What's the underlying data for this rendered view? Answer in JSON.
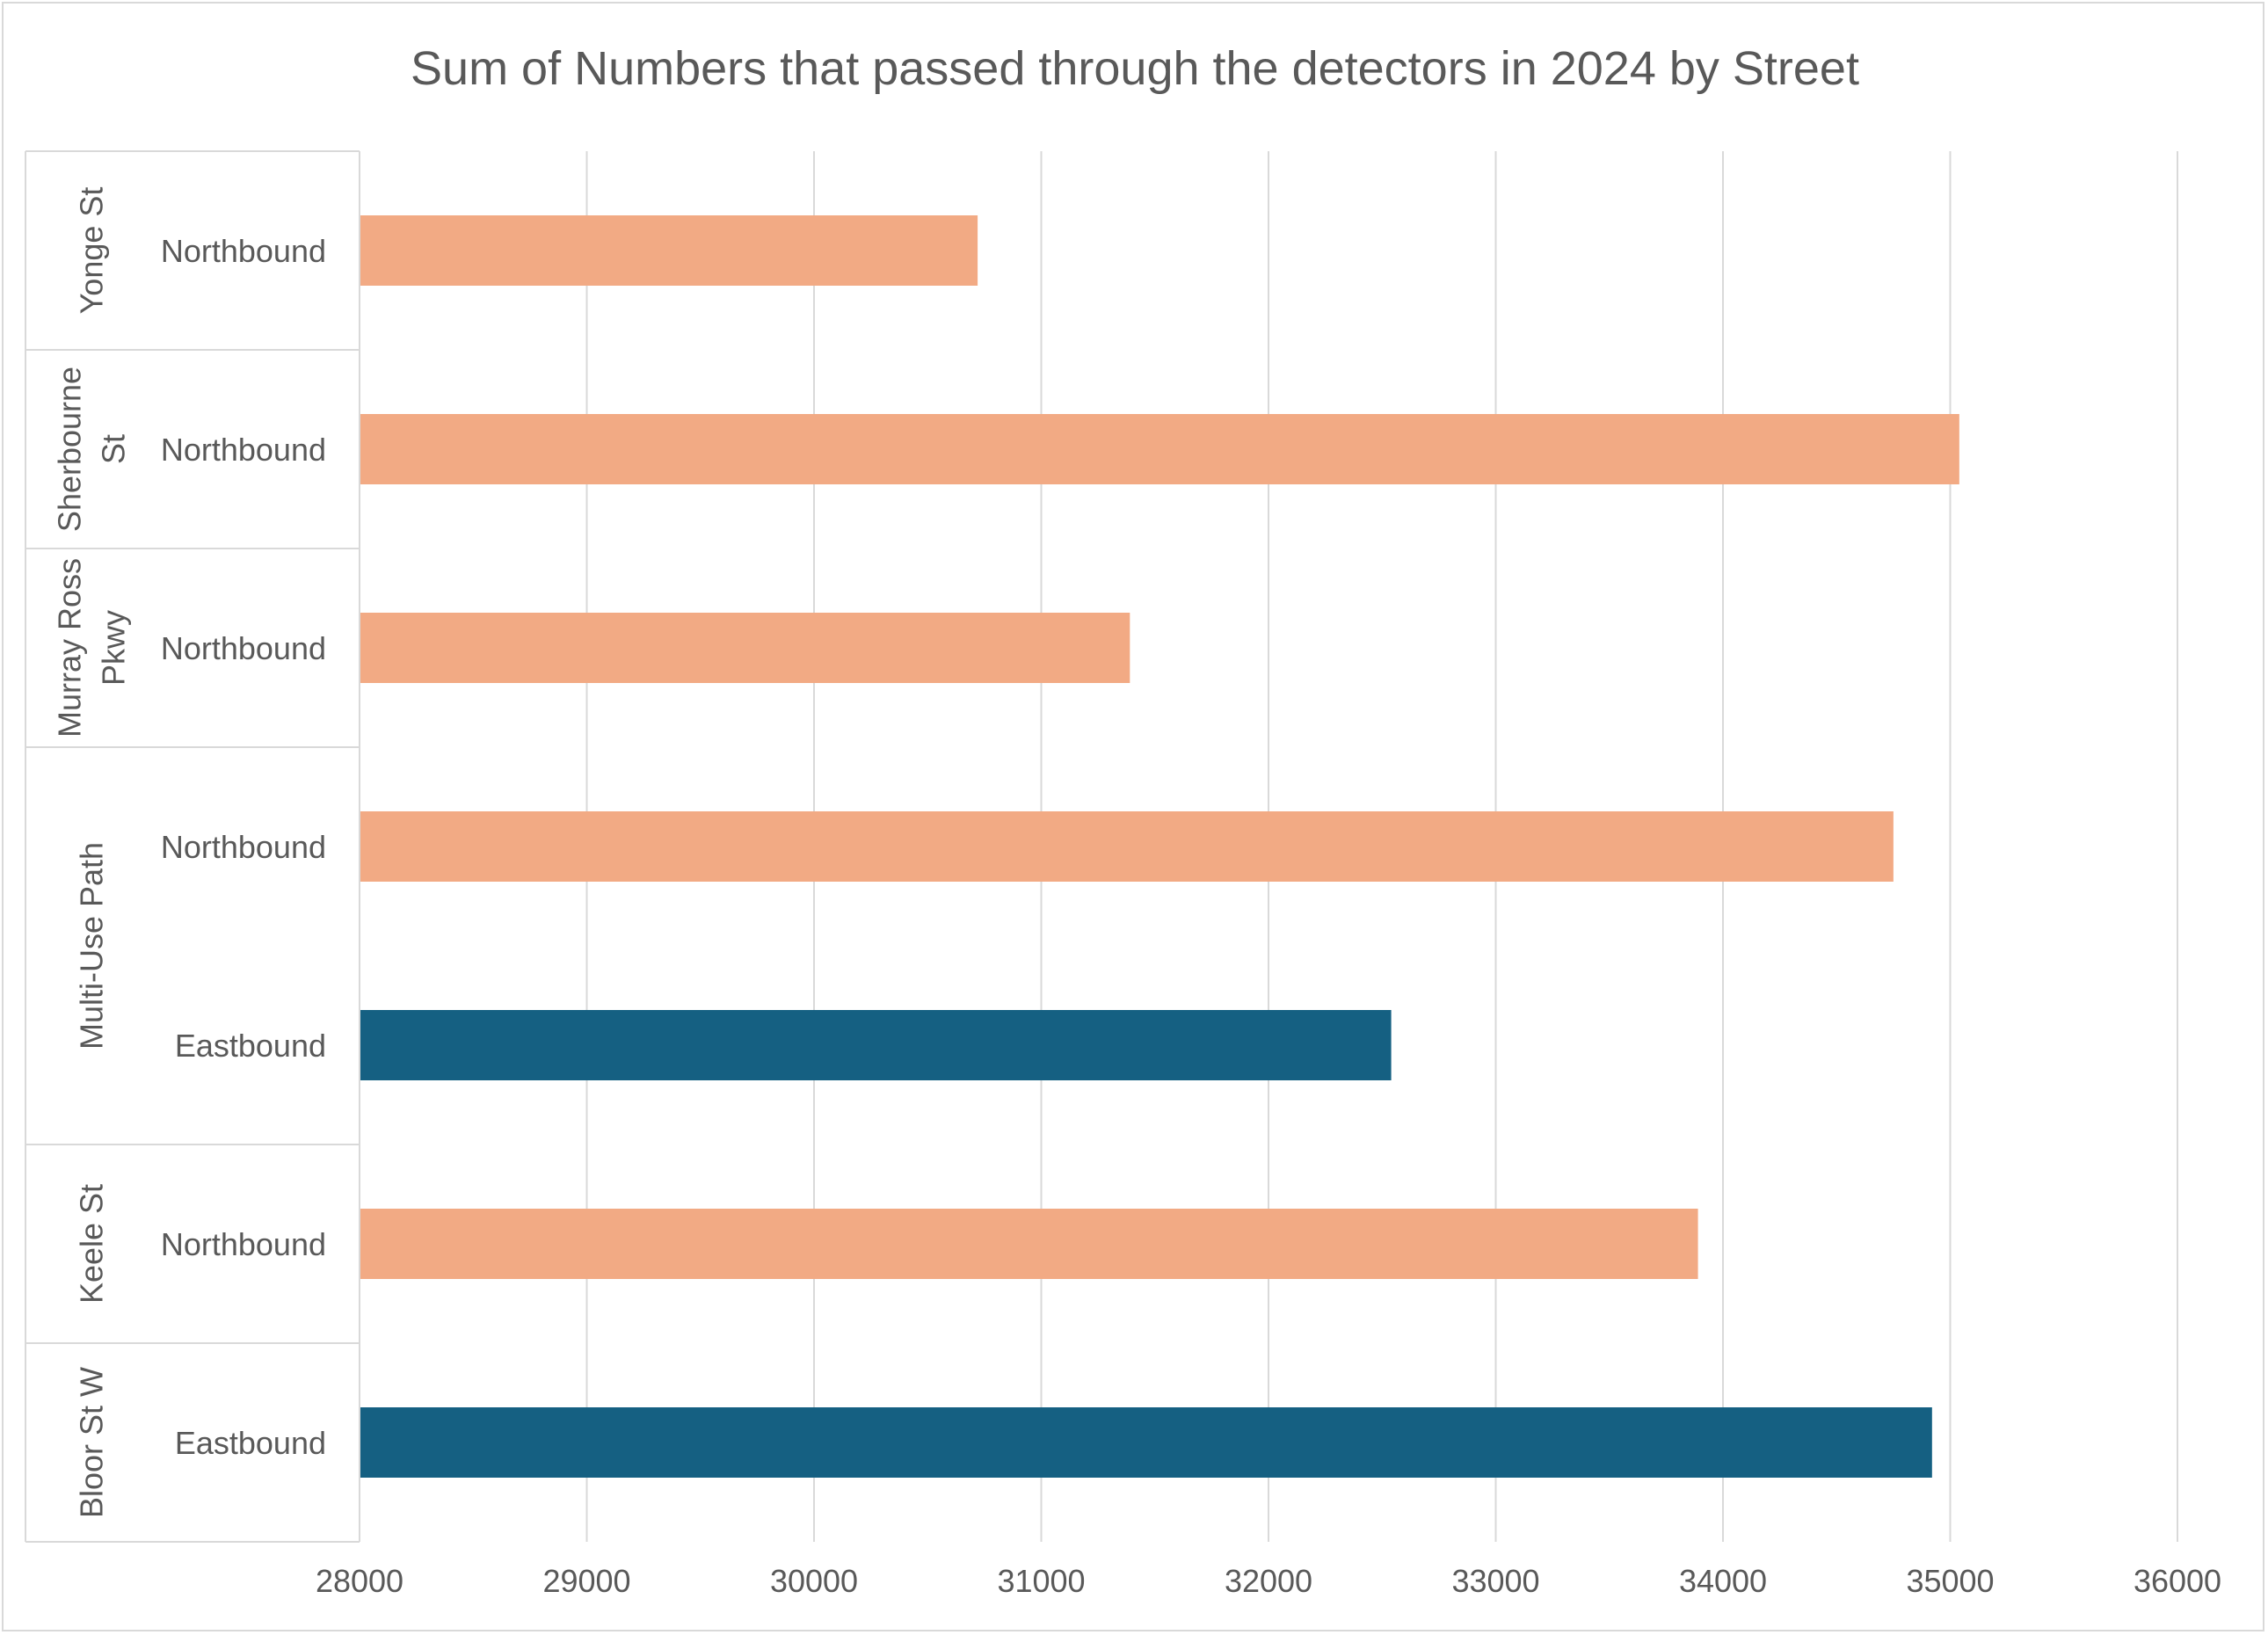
{
  "chart_data": {
    "type": "bar",
    "orientation": "horizontal",
    "title": "Sum of Numbers that passed through the detectors in 2024 by Street",
    "xlabel": "",
    "ylabel": "",
    "xlim": [
      28000,
      36000
    ],
    "x_ticks": [
      "28000",
      "29000",
      "30000",
      "31000",
      "32000",
      "33000",
      "34000",
      "35000",
      "36000"
    ],
    "grid": true,
    "legend": "none",
    "colors": {
      "Northbound": "#F2AA84",
      "Eastbound": "#156082"
    },
    "groups": [
      {
        "street": "Yonge St",
        "street_lines": [
          "Yonge St"
        ],
        "bars": [
          {
            "direction": "Northbound",
            "value": 30720
          }
        ]
      },
      {
        "street": "Sherbourne St",
        "street_lines": [
          "Sherbourne",
          "St"
        ],
        "bars": [
          {
            "direction": "Northbound",
            "value": 35040
          }
        ]
      },
      {
        "street": "Murray Ross Pkwy",
        "street_lines": [
          "Murray Ross",
          "Pkwy"
        ],
        "bars": [
          {
            "direction": "Northbound",
            "value": 31390
          }
        ]
      },
      {
        "street": "Multi-Use Path",
        "street_lines": [
          "Multi-Use Path"
        ],
        "bars": [
          {
            "direction": "Northbound",
            "value": 34750
          },
          {
            "direction": "Eastbound",
            "value": 32540
          }
        ]
      },
      {
        "street": "Keele St",
        "street_lines": [
          "Keele St"
        ],
        "bars": [
          {
            "direction": "Northbound",
            "value": 33890
          }
        ]
      },
      {
        "street": "Bloor St W",
        "street_lines": [
          "Bloor St W"
        ],
        "bars": [
          {
            "direction": "Eastbound",
            "value": 34920
          }
        ]
      }
    ]
  }
}
